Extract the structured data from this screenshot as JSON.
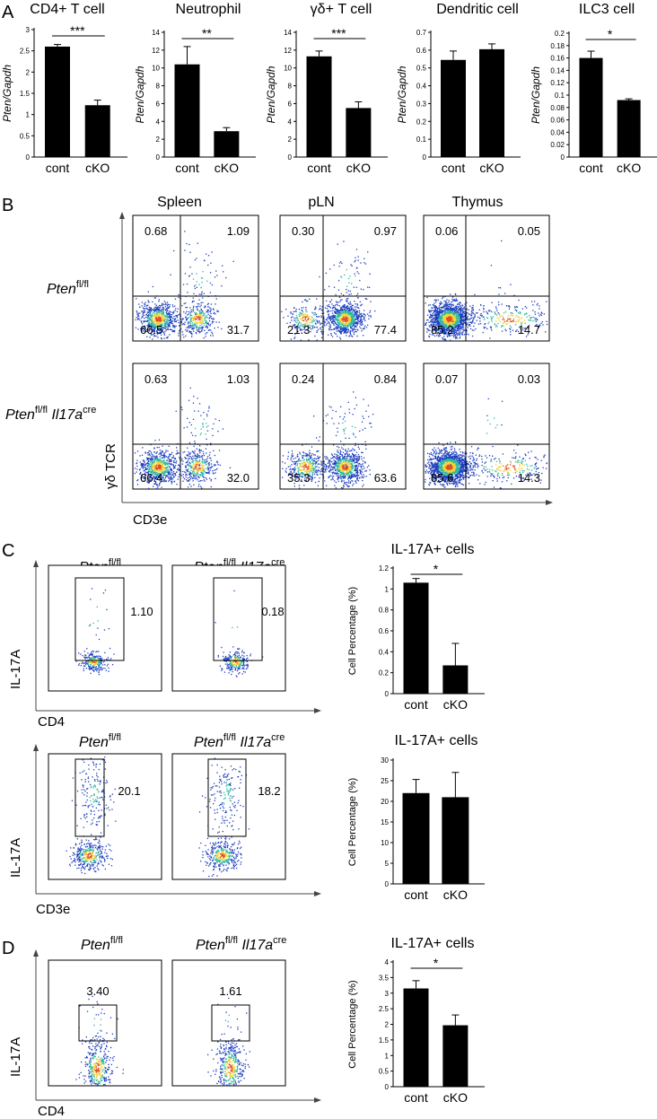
{
  "panels": {
    "A": "A",
    "B": "B",
    "C": "C",
    "D": "D"
  },
  "genotypes": {
    "ctrl": {
      "base": "Pten",
      "sup": "fl/fl"
    },
    "cko": {
      "base": "Pten",
      "sup": "fl/fl",
      "gene": "Il17a",
      "gene_sup": "cre"
    }
  },
  "colors": {
    "bar": "#000000",
    "dot_low": "#1f3fbf",
    "dot_mid": "#2fb8a0",
    "dot_high": "#f2d23a",
    "dot_peak": "#e0501f"
  },
  "chart_data": [
    {
      "type": "bar",
      "id": "A1",
      "title": "CD4+ T cell",
      "ylabel": "Pten/Gapdh",
      "categories": [
        "cont",
        "cKO"
      ],
      "values": [
        2.6,
        1.22
      ],
      "errors": [
        0.05,
        0.12
      ],
      "ylim": [
        0,
        3
      ],
      "yticks": [
        "0",
        "0.5",
        "1",
        "1.5",
        "2",
        "2.5",
        "3"
      ],
      "significance": "***"
    },
    {
      "type": "bar",
      "id": "A2",
      "title": "Neutrophil",
      "ylabel": "Pten/Gapdh",
      "categories": [
        "cont",
        "cKO"
      ],
      "values": [
        10.4,
        2.9
      ],
      "errors": [
        2.0,
        0.4
      ],
      "ylim": [
        0,
        14
      ],
      "yticks": [
        "0",
        "2",
        "4",
        "6",
        "8",
        "10",
        "12",
        "14"
      ],
      "significance": "**"
    },
    {
      "type": "bar",
      "id": "A3",
      "title": "γδ+ T cell",
      "ylabel": "Pten/Gapdh",
      "categories": [
        "cont",
        "cKO"
      ],
      "values": [
        11.3,
        5.5
      ],
      "errors": [
        0.6,
        0.7
      ],
      "ylim": [
        0,
        14
      ],
      "yticks": [
        "0",
        "2",
        "4",
        "6",
        "8",
        "10",
        "12",
        "14"
      ],
      "significance": "***"
    },
    {
      "type": "bar",
      "id": "A4",
      "title": "Dendritic cell",
      "ylabel": "Pten/Gapdh",
      "categories": [
        "cont",
        "cKO"
      ],
      "values": [
        0.545,
        0.605
      ],
      "errors": [
        0.05,
        0.03
      ],
      "ylim": [
        0,
        0.7
      ],
      "yticks": [
        "0",
        "0.1",
        "0.2",
        "0.3",
        "0.4",
        "0.5",
        "0.6",
        "0.7"
      ],
      "significance": ""
    },
    {
      "type": "bar",
      "id": "A5",
      "title": "ILC3 cell",
      "ylabel": "Pten/Gapdh",
      "categories": [
        "cont",
        "cKO"
      ],
      "values": [
        0.16,
        0.092
      ],
      "errors": [
        0.011,
        0.002
      ],
      "ylim": [
        0,
        0.2
      ],
      "yticks": [
        "0",
        "0.02",
        "0.04",
        "0.06",
        "0.08",
        "0.1",
        "0.12",
        "0.14",
        "0.16",
        "0.18",
        "0.2"
      ],
      "significance": "*"
    },
    {
      "type": "bar",
      "id": "C1",
      "title": "IL-17A+ cells",
      "ylabel": "Cell Percentage (%)",
      "categories": [
        "cont",
        "cKO"
      ],
      "values": [
        1.06,
        0.27
      ],
      "errors": [
        0.04,
        0.21
      ],
      "ylim": [
        0,
        1.2
      ],
      "yticks": [
        "0",
        "0.2",
        "0.4",
        "0.6",
        "0.8",
        "1",
        "1.2"
      ],
      "significance": "*"
    },
    {
      "type": "bar",
      "id": "C2",
      "title": "IL-17A+ cells",
      "ylabel": "Cell Percentage (%)",
      "categories": [
        "cont",
        "cKO"
      ],
      "values": [
        22.0,
        21.0
      ],
      "errors": [
        3.3,
        6.0
      ],
      "ylim": [
        0,
        30
      ],
      "yticks": [
        "0",
        "5",
        "10",
        "15",
        "20",
        "25",
        "30"
      ],
      "significance": ""
    },
    {
      "type": "bar",
      "id": "D1",
      "title": "IL-17A+ cells",
      "ylabel": "Cell Percentage (%)",
      "categories": [
        "cont",
        "cKO"
      ],
      "values": [
        3.15,
        1.97
      ],
      "errors": [
        0.25,
        0.33
      ],
      "ylim": [
        0,
        4
      ],
      "yticks": [
        "0",
        "0.5",
        "1",
        "1.5",
        "2",
        "2.5",
        "3",
        "3.5",
        "4"
      ],
      "significance": "*"
    }
  ],
  "flow_B": {
    "columns": [
      "Spleen",
      "pLN",
      "Thymus"
    ],
    "xlabel": "CD3e",
    "ylabel": "γδ TCR",
    "rows": [
      {
        "quadrants": [
          [
            "0.68",
            "1.09",
            "66.5",
            "31.7"
          ],
          [
            "0.30",
            "0.97",
            "21.3",
            "77.4"
          ],
          [
            "0.06",
            "0.05",
            "85.2",
            "14.7"
          ]
        ]
      },
      {
        "quadrants": [
          [
            "0.63",
            "1.03",
            "66.4",
            "32.0"
          ],
          [
            "0.24",
            "0.84",
            "35.3",
            "63.6"
          ],
          [
            "0.07",
            "0.03",
            "85.6",
            "14.3"
          ]
        ]
      }
    ]
  },
  "flow_C_top": {
    "xlabel": "CD4",
    "ylabel": "IL-17A",
    "gates": [
      "1.10",
      "0.18"
    ]
  },
  "flow_C_bottom": {
    "xlabel": "CD3e",
    "ylabel": "IL-17A",
    "gates": [
      "20.1",
      "18.2"
    ]
  },
  "flow_D": {
    "xlabel": "CD4",
    "ylabel": "IL-17A",
    "gates": [
      "3.40",
      "1.61"
    ]
  }
}
